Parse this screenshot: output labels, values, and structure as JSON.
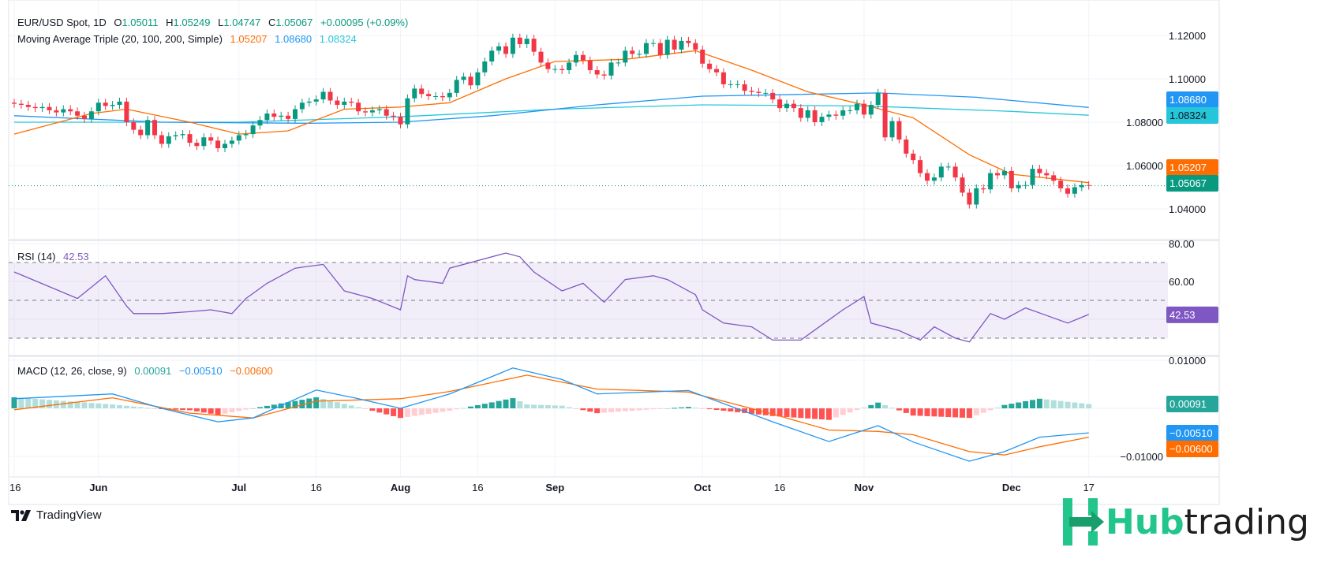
{
  "header": {
    "symbol": "EUR/USD Spot, 1D",
    "open_label": "O",
    "open": "1.05011",
    "high_label": "H",
    "high": "1.05249",
    "low_label": "L",
    "low": "1.04747",
    "close_label": "C",
    "close": "1.05067",
    "change": "+0.00095 (+0.09%)",
    "ma_title": "Moving Average Triple (20, 100, 200, Simple)",
    "ma20": "1.05207",
    "ma100": "1.08680",
    "ma200": "1.08324"
  },
  "rsi_legend": {
    "title": "RSI (14)",
    "value": "42.53"
  },
  "macd_legend": {
    "title": "MACD (12, 26, close, 9)",
    "histogram": "0.00091",
    "macd": "−0.00510",
    "signal": "−0.00600"
  },
  "colors": {
    "up": "#089981",
    "down": "#f23645",
    "ma20": "#ff6d00",
    "ma100": "#2196f3",
    "ma200": "#26c6da",
    "rsi": "#7e57c2",
    "hist_up_strong": "#26a69a",
    "hist_up_weak": "#b2dfdb",
    "hist_down_weak": "#ffcdd2",
    "hist_down_strong": "#ff5252"
  },
  "chart_data": [
    {
      "type": "candlestick",
      "title": "EUR/USD Spot, 1D",
      "date_range": [
        "2024-05-16",
        "2024-12-17"
      ],
      "ylim": [
        1.03,
        1.125
      ],
      "y_ticks": [
        "1.12000",
        "1.10000",
        "1.08000",
        "1.06000",
        "1.04000"
      ],
      "y_tick_values": [
        1.12,
        1.1,
        1.08,
        1.06,
        1.04
      ],
      "closes": [
        1.0885,
        1.088,
        1.087,
        1.0865,
        1.087,
        1.0855,
        1.0845,
        1.086,
        1.085,
        1.083,
        1.0815,
        1.085,
        1.089,
        1.0875,
        1.088,
        1.0895,
        1.08,
        1.0765,
        1.074,
        1.081,
        1.074,
        1.07,
        1.0735,
        1.074,
        1.0745,
        1.0705,
        1.069,
        1.073,
        1.0715,
        1.068,
        1.07,
        1.0715,
        1.074,
        1.0745,
        1.0785,
        1.081,
        1.084,
        1.0825,
        1.083,
        1.0815,
        1.086,
        1.089,
        1.0895,
        1.0905,
        1.094,
        1.09,
        1.088,
        1.0895,
        1.089,
        1.085,
        1.0845,
        1.0855,
        1.086,
        1.083,
        1.0825,
        1.079,
        1.091,
        1.0955,
        1.093,
        1.092,
        1.092,
        1.0915,
        1.0935,
        1.0995,
        1.101,
        1.097,
        1.103,
        1.108,
        1.113,
        1.115,
        1.1115,
        1.119,
        1.116,
        1.1185,
        1.1125,
        1.1075,
        1.1045,
        1.1045,
        1.104,
        1.1075,
        1.111,
        1.1085,
        1.104,
        1.102,
        1.1015,
        1.1075,
        1.1075,
        1.113,
        1.1115,
        1.1115,
        1.1165,
        1.1165,
        1.111,
        1.118,
        1.1135,
        1.1175,
        1.1165,
        1.1135,
        1.107,
        1.1045,
        1.103,
        1.0975,
        1.0975,
        1.0975,
        1.0945,
        1.094,
        1.0935,
        1.0935,
        1.0905,
        1.0865,
        1.0885,
        1.0865,
        1.082,
        1.0855,
        1.08,
        1.0825,
        1.0835,
        1.083,
        1.0855,
        1.0855,
        1.0885,
        1.0835,
        1.088,
        1.0935,
        1.073,
        1.0805,
        1.072,
        1.0655,
        1.0625,
        1.0565,
        1.053,
        1.0545,
        1.0595,
        1.0595,
        1.0545,
        1.0475,
        1.042,
        1.0495,
        1.049,
        1.0565,
        1.0555,
        1.0575,
        1.0495,
        1.051,
        1.051,
        1.0585,
        1.0565,
        1.0555,
        1.053,
        1.0495,
        1.047,
        1.05,
        1.051,
        1.0507
      ],
      "last_price": {
        "value": 1.05067,
        "label": "1.05067"
      },
      "moving_averages": [
        {
          "name": "MA 20",
          "label": "1.05207",
          "color": "#ff6d00",
          "points": [
            [
              "2024-05-16",
              1.0745
            ],
            [
              "2024-05-31",
              1.084
            ],
            [
              "2024-06-07",
              1.086
            ],
            [
              "2024-06-20",
              1.08
            ],
            [
              "2024-07-01",
              1.0745
            ],
            [
              "2024-07-10",
              1.076
            ],
            [
              "2024-07-22",
              1.086
            ],
            [
              "2024-08-01",
              1.087
            ],
            [
              "2024-08-12",
              1.089
            ],
            [
              "2024-08-22",
              1.1
            ],
            [
              "2024-09-02",
              1.108
            ],
            [
              "2024-09-16",
              1.109
            ],
            [
              "2024-09-30",
              1.113
            ],
            [
              "2024-10-10",
              1.104
            ],
            [
              "2024-10-22",
              1.094
            ],
            [
              "2024-11-01",
              1.088
            ],
            [
              "2024-11-12",
              1.082
            ],
            [
              "2024-11-22",
              1.065
            ],
            [
              "2024-12-02",
              1.056
            ],
            [
              "2024-12-17",
              1.0521
            ]
          ]
        },
        {
          "name": "MA 100",
          "label": "1.08680",
          "color": "#2196f3",
          "points": [
            [
              "2024-05-16",
              1.083
            ],
            [
              "2024-06-14",
              1.08
            ],
            [
              "2024-07-15",
              1.0795
            ],
            [
              "2024-08-01",
              1.08
            ],
            [
              "2024-08-20",
              1.083
            ],
            [
              "2024-09-10",
              1.088
            ],
            [
              "2024-10-01",
              1.092
            ],
            [
              "2024-11-05",
              1.0935
            ],
            [
              "2024-11-25",
              1.0915
            ],
            [
              "2024-12-17",
              1.0868
            ]
          ]
        },
        {
          "name": "MA 200",
          "label": "1.08324",
          "color": "#26c6da",
          "points": [
            [
              "2024-05-16",
              1.08
            ],
            [
              "2024-07-01",
              1.08
            ],
            [
              "2024-08-01",
              1.0825
            ],
            [
              "2024-09-02",
              1.086
            ],
            [
              "2024-10-01",
              1.088
            ],
            [
              "2024-11-01",
              1.0875
            ],
            [
              "2024-12-02",
              1.085
            ],
            [
              "2024-12-17",
              1.0832
            ]
          ]
        }
      ]
    },
    {
      "type": "line",
      "title": "RSI (14)",
      "ylim": [
        20,
        85
      ],
      "y_ticks": [
        "80.00",
        "60.00"
      ],
      "y_tick_values": [
        80,
        60
      ],
      "bands": [
        70,
        50,
        30
      ],
      "last_label": "42.53",
      "points": [
        [
          "2024-05-16",
          65
        ],
        [
          "2024-05-29",
          51
        ],
        [
          "2024-06-04",
          63
        ],
        [
          "2024-06-07",
          47
        ],
        [
          "2024-06-10",
          43
        ],
        [
          "2024-06-14",
          43
        ],
        [
          "2024-06-20",
          44
        ],
        [
          "2024-06-25",
          45
        ],
        [
          "2024-06-28",
          43
        ],
        [
          "2024-07-02",
          51
        ],
        [
          "2024-07-05",
          59
        ],
        [
          "2024-07-11",
          67
        ],
        [
          "2024-07-17",
          69
        ],
        [
          "2024-07-22",
          55
        ],
        [
          "2024-07-26",
          51
        ],
        [
          "2024-08-01",
          45
        ],
        [
          "2024-08-02",
          63
        ],
        [
          "2024-08-05",
          61
        ],
        [
          "2024-08-09",
          59
        ],
        [
          "2024-08-12",
          67
        ],
        [
          "2024-08-22",
          75
        ],
        [
          "2024-08-26",
          73
        ],
        [
          "2024-08-28",
          65
        ],
        [
          "2024-09-03",
          55
        ],
        [
          "2024-09-06",
          59
        ],
        [
          "2024-09-11",
          49
        ],
        [
          "2024-09-16",
          61
        ],
        [
          "2024-09-20",
          63
        ],
        [
          "2024-09-24",
          61
        ],
        [
          "2024-09-30",
          53
        ],
        [
          "2024-10-01",
          45
        ],
        [
          "2024-10-04",
          38
        ],
        [
          "2024-10-10",
          36
        ],
        [
          "2024-10-15",
          29
        ],
        [
          "2024-10-21",
          29
        ],
        [
          "2024-10-24",
          37
        ],
        [
          "2024-10-29",
          45
        ],
        [
          "2024-11-01",
          52
        ],
        [
          "2024-11-04",
          38
        ],
        [
          "2024-11-08",
          34
        ],
        [
          "2024-11-13",
          29
        ],
        [
          "2024-11-15",
          36
        ],
        [
          "2024-11-20",
          30
        ],
        [
          "2024-11-22",
          28
        ],
        [
          "2024-11-26",
          38
        ],
        [
          "2024-11-27",
          43
        ],
        [
          "2024-11-29",
          40
        ],
        [
          "2024-12-04",
          46
        ],
        [
          "2024-12-09",
          42
        ],
        [
          "2024-12-12",
          38
        ],
        [
          "2024-12-17",
          42.53
        ]
      ]
    },
    {
      "type": "line",
      "title": "MACD (12, 26, close, 9)",
      "ylim": [
        -0.0125,
        0.011
      ],
      "y_ticks": [
        "0.01000",
        "−0.01000"
      ],
      "y_tick_values": [
        0.01,
        -0.01
      ],
      "labels": {
        "histogram": "0.00091",
        "macd": "−0.00510",
        "signal": "−0.00600"
      },
      "macd": [
        [
          "2024-05-16",
          0.002
        ],
        [
          "2024-06-05",
          0.003
        ],
        [
          "2024-06-14",
          0.0
        ],
        [
          "2024-06-26",
          -0.0028
        ],
        [
          "2024-07-03",
          -0.002
        ],
        [
          "2024-07-16",
          0.0038
        ],
        [
          "2024-07-24",
          0.002
        ],
        [
          "2024-08-01",
          0.0
        ],
        [
          "2024-08-12",
          0.003
        ],
        [
          "2024-08-23",
          0.0084
        ],
        [
          "2024-09-03",
          0.006
        ],
        [
          "2024-09-10",
          0.003
        ],
        [
          "2024-09-27",
          0.0037
        ],
        [
          "2024-10-15",
          -0.0028
        ],
        [
          "2024-10-25",
          -0.0069
        ],
        [
          "2024-11-05",
          -0.0036
        ],
        [
          "2024-11-12",
          -0.007
        ],
        [
          "2024-11-22",
          -0.011
        ],
        [
          "2024-11-29",
          -0.009
        ],
        [
          "2024-12-06",
          -0.006
        ],
        [
          "2024-12-17",
          -0.0051
        ]
      ],
      "signal": [
        [
          "2024-05-16",
          -0.0003
        ],
        [
          "2024-06-05",
          0.0022
        ],
        [
          "2024-06-20",
          -0.001
        ],
        [
          "2024-07-03",
          -0.002
        ],
        [
          "2024-07-16",
          0.0015
        ],
        [
          "2024-08-01",
          0.002
        ],
        [
          "2024-08-12",
          0.0035
        ],
        [
          "2024-08-27",
          0.0069
        ],
        [
          "2024-09-10",
          0.004
        ],
        [
          "2024-09-27",
          0.0034
        ],
        [
          "2024-10-15",
          -0.0012
        ],
        [
          "2024-10-25",
          -0.0045
        ],
        [
          "2024-11-05",
          -0.0048
        ],
        [
          "2024-11-12",
          -0.0055
        ],
        [
          "2024-11-22",
          -0.009
        ],
        [
          "2024-11-29",
          -0.0097
        ],
        [
          "2024-12-06",
          -0.008
        ],
        [
          "2024-12-17",
          -0.006
        ]
      ]
    }
  ],
  "time_axis": [
    {
      "date": "2024-05-16",
      "label": "16",
      "bold": false
    },
    {
      "date": "2024-06-03",
      "label": "Jun",
      "bold": true
    },
    {
      "date": "2024-07-01",
      "label": "Jul",
      "bold": true
    },
    {
      "date": "2024-07-16",
      "label": "16",
      "bold": false
    },
    {
      "date": "2024-08-01",
      "label": "Aug",
      "bold": true
    },
    {
      "date": "2024-08-16",
      "label": "16",
      "bold": false
    },
    {
      "date": "2024-09-02",
      "label": "Sep",
      "bold": true
    },
    {
      "date": "2024-10-01",
      "label": "Oct",
      "bold": true
    },
    {
      "date": "2024-10-16",
      "label": "16",
      "bold": false
    },
    {
      "date": "2024-11-01",
      "label": "Nov",
      "bold": true
    },
    {
      "date": "2024-12-02",
      "label": "Dec",
      "bold": true
    },
    {
      "date": "2024-12-17",
      "label": "17",
      "bold": false
    }
  ],
  "footer": {
    "tradingview": "TradingView",
    "brand_hub": "Hub",
    "brand_trading": "trading"
  }
}
